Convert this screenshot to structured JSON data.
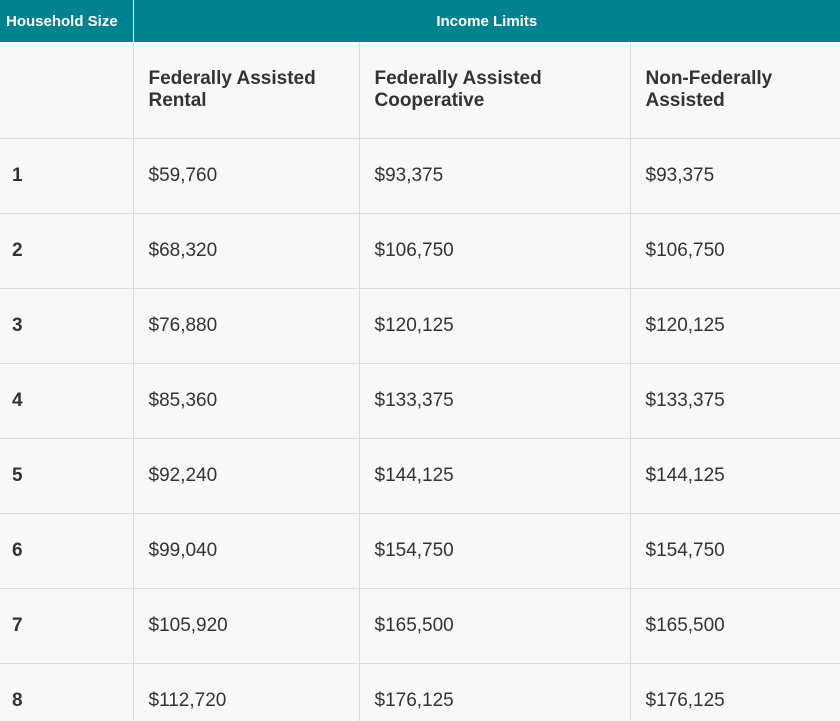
{
  "header": {
    "household_size": "Household Size",
    "income_limits": "Income Limits"
  },
  "columns": [
    "Federally Assisted Rental",
    "Federally Assisted Cooperative",
    "Non-Federally Assisted"
  ],
  "rows": [
    {
      "size": "1",
      "values": [
        "$59,760",
        "$93,375",
        "$93,375"
      ]
    },
    {
      "size": "2",
      "values": [
        "$68,320",
        "$106,750",
        "$106,750"
      ]
    },
    {
      "size": "3",
      "values": [
        "$76,880",
        "$120,125",
        "$120,125"
      ]
    },
    {
      "size": "4",
      "values": [
        "$85,360",
        "$133,375",
        "$133,375"
      ]
    },
    {
      "size": "5",
      "values": [
        "$92,240",
        "$144,125",
        "$144,125"
      ]
    },
    {
      "size": "6",
      "values": [
        "$99,040",
        "$154,750",
        "$154,750"
      ]
    },
    {
      "size": "7",
      "values": [
        "$105,920",
        "$165,500",
        "$165,500"
      ]
    },
    {
      "size": "8",
      "values": [
        "$112,720",
        "$176,125",
        "$176,125"
      ]
    }
  ],
  "colors": {
    "header_bg": "#00838f",
    "header_text": "#ffffff",
    "body_bg": "#f8f8f8",
    "border": "#dcdcdc",
    "text": "#333333"
  }
}
